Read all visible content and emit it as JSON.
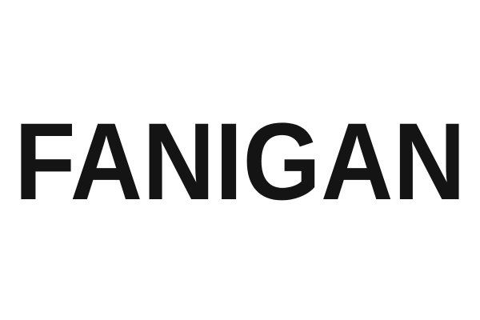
{
  "wordmark": {
    "text": "FANIGAN",
    "color": "#141414",
    "background": "#ffffff"
  }
}
